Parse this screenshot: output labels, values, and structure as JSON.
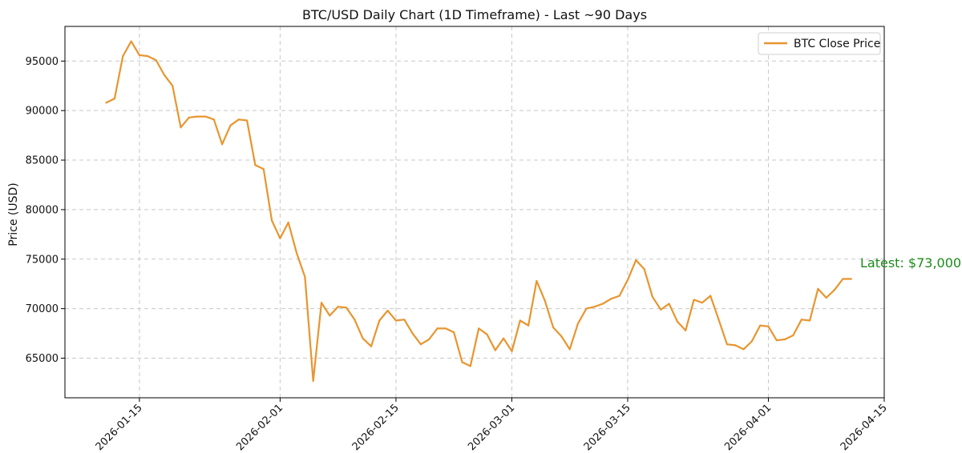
{
  "chart_data": {
    "type": "line",
    "title": "BTC/USD Daily Chart (1D Timeframe) - Last ~90 Days",
    "xlabel": "",
    "ylabel": "Price (USD)",
    "x_axis_type": "date",
    "xlim": [
      "2026-01-06",
      "2026-04-15"
    ],
    "ylim": [
      61000,
      98500
    ],
    "x_ticks": [
      "2026-01-15",
      "2026-02-01",
      "2026-02-15",
      "2026-03-01",
      "2026-03-15",
      "2026-04-01",
      "2026-04-15"
    ],
    "y_ticks": [
      65000,
      70000,
      75000,
      80000,
      85000,
      90000,
      95000
    ],
    "grid": true,
    "legend": {
      "position": "top-right",
      "entries": [
        "BTC Close Price"
      ]
    },
    "series": [
      {
        "name": "BTC Close Price",
        "color": "#e8952f",
        "points": [
          [
            "2026-01-11",
            90800
          ],
          [
            "2026-01-12",
            91200
          ],
          [
            "2026-01-13",
            95500
          ],
          [
            "2026-01-14",
            97000
          ],
          [
            "2026-01-15",
            95600
          ],
          [
            "2026-01-16",
            95500
          ],
          [
            "2026-01-17",
            95100
          ],
          [
            "2026-01-18",
            93600
          ],
          [
            "2026-01-19",
            92500
          ],
          [
            "2026-01-20",
            88300
          ],
          [
            "2026-01-21",
            89300
          ],
          [
            "2026-01-22",
            89400
          ],
          [
            "2026-01-23",
            89400
          ],
          [
            "2026-01-24",
            89100
          ],
          [
            "2026-01-25",
            86600
          ],
          [
            "2026-01-26",
            88500
          ],
          [
            "2026-01-27",
            89100
          ],
          [
            "2026-01-28",
            89000
          ],
          [
            "2026-01-29",
            84500
          ],
          [
            "2026-01-30",
            84100
          ],
          [
            "2026-01-31",
            78900
          ],
          [
            "2026-02-01",
            77100
          ],
          [
            "2026-02-02",
            78700
          ],
          [
            "2026-02-03",
            75600
          ],
          [
            "2026-02-04",
            73200
          ],
          [
            "2026-02-05",
            62700
          ],
          [
            "2026-02-06",
            70600
          ],
          [
            "2026-02-07",
            69300
          ],
          [
            "2026-02-08",
            70200
          ],
          [
            "2026-02-09",
            70100
          ],
          [
            "2026-02-10",
            68900
          ],
          [
            "2026-02-11",
            67000
          ],
          [
            "2026-02-12",
            66200
          ],
          [
            "2026-02-13",
            68800
          ],
          [
            "2026-02-14",
            69800
          ],
          [
            "2026-02-15",
            68800
          ],
          [
            "2026-02-16",
            68900
          ],
          [
            "2026-02-17",
            67500
          ],
          [
            "2026-02-18",
            66400
          ],
          [
            "2026-02-19",
            66900
          ],
          [
            "2026-02-20",
            68000
          ],
          [
            "2026-02-21",
            68000
          ],
          [
            "2026-02-22",
            67600
          ],
          [
            "2026-02-23",
            64600
          ],
          [
            "2026-02-24",
            64200
          ],
          [
            "2026-02-25",
            68000
          ],
          [
            "2026-02-26",
            67400
          ],
          [
            "2026-02-27",
            65800
          ],
          [
            "2026-02-28",
            67000
          ],
          [
            "2026-03-01",
            65700
          ],
          [
            "2026-03-02",
            68800
          ],
          [
            "2026-03-03",
            68300
          ],
          [
            "2026-03-04",
            72800
          ],
          [
            "2026-03-05",
            70800
          ],
          [
            "2026-03-06",
            68100
          ],
          [
            "2026-03-07",
            67200
          ],
          [
            "2026-03-08",
            65900
          ],
          [
            "2026-03-09",
            68500
          ],
          [
            "2026-03-10",
            70000
          ],
          [
            "2026-03-11",
            70200
          ],
          [
            "2026-03-12",
            70500
          ],
          [
            "2026-03-13",
            71000
          ],
          [
            "2026-03-14",
            71300
          ],
          [
            "2026-03-15",
            72900
          ],
          [
            "2026-03-16",
            74900
          ],
          [
            "2026-03-17",
            74000
          ],
          [
            "2026-03-18",
            71200
          ],
          [
            "2026-03-19",
            69900
          ],
          [
            "2026-03-20",
            70500
          ],
          [
            "2026-03-21",
            68700
          ],
          [
            "2026-03-22",
            67800
          ],
          [
            "2026-03-23",
            70900
          ],
          [
            "2026-03-24",
            70600
          ],
          [
            "2026-03-25",
            71300
          ],
          [
            "2026-03-26",
            68900
          ],
          [
            "2026-03-27",
            66400
          ],
          [
            "2026-03-28",
            66300
          ],
          [
            "2026-03-29",
            65900
          ],
          [
            "2026-03-30",
            66700
          ],
          [
            "2026-03-31",
            68300
          ],
          [
            "2026-04-01",
            68200
          ],
          [
            "2026-04-02",
            66800
          ],
          [
            "2026-04-03",
            66900
          ],
          [
            "2026-04-04",
            67300
          ],
          [
            "2026-04-05",
            68900
          ],
          [
            "2026-04-06",
            68800
          ],
          [
            "2026-04-07",
            72000
          ],
          [
            "2026-04-08",
            71100
          ],
          [
            "2026-04-09",
            71900
          ],
          [
            "2026-04-10",
            73000
          ],
          [
            "2026-04-11",
            73000
          ]
        ]
      }
    ],
    "annotations": [
      {
        "text": "Latest: $73,000",
        "color": "#1a8c1a"
      }
    ]
  }
}
